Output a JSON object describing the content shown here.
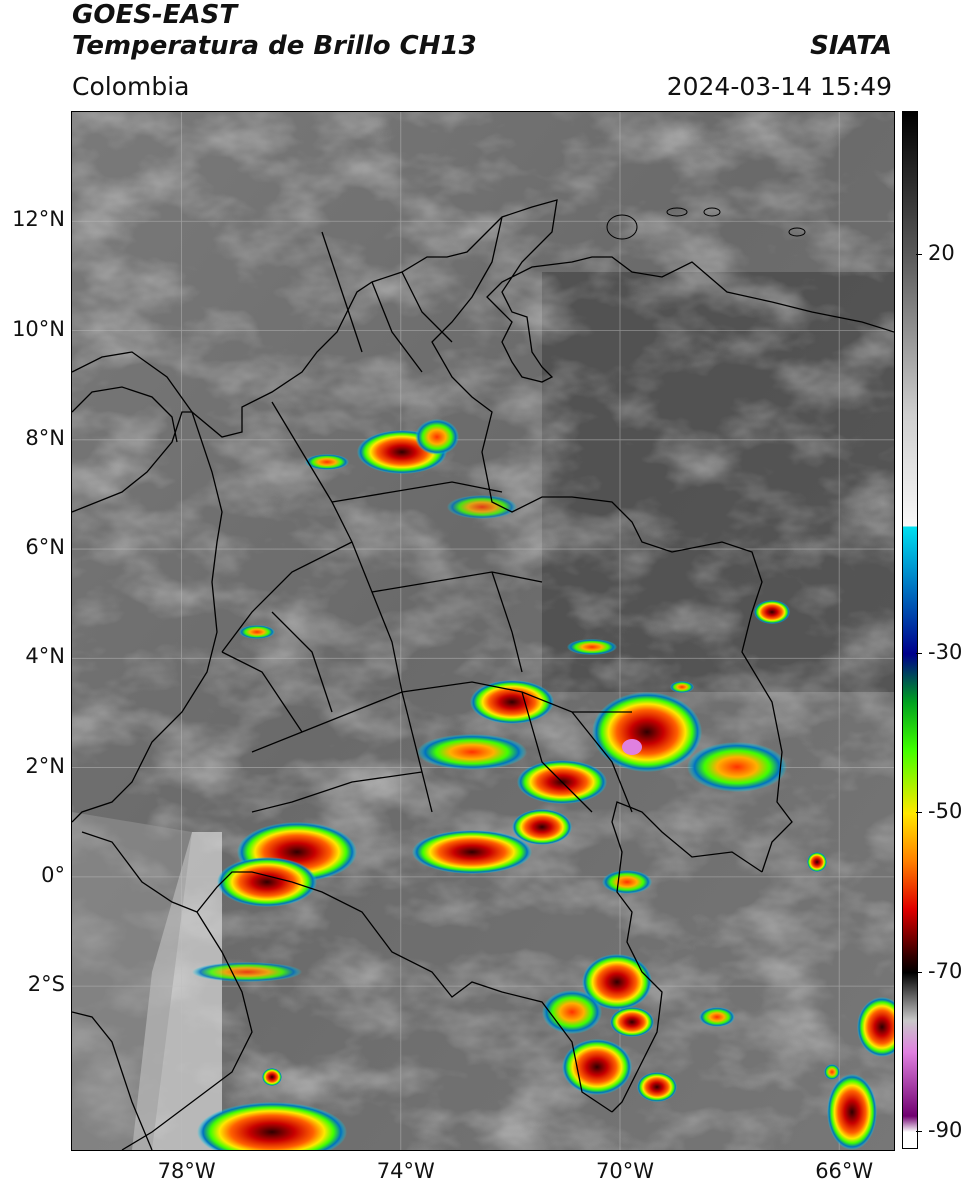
{
  "header": {
    "satellite": "GOES-EAST",
    "product": "Temperatura de Brillo CH13",
    "region": "Colombia",
    "agency": "SIATA",
    "datetime": "2024-03-14 15:49"
  },
  "axes": {
    "lat_ticks": [
      {
        "label": "12°N",
        "value": 12
      },
      {
        "label": "10°N",
        "value": 10
      },
      {
        "label": "8°N",
        "value": 8
      },
      {
        "label": "6°N",
        "value": 6
      },
      {
        "label": "4°N",
        "value": 4
      },
      {
        "label": "2°N",
        "value": 2
      },
      {
        "label": "0°",
        "value": 0
      },
      {
        "label": "2°S",
        "value": -2
      }
    ],
    "lon_ticks": [
      {
        "label": "78°W",
        "value": -78
      },
      {
        "label": "74°W",
        "value": -74
      },
      {
        "label": "70°W",
        "value": -70
      },
      {
        "label": "66°W",
        "value": -66
      }
    ],
    "lon_range": [
      -80.0,
      -65.0
    ],
    "lat_range": [
      -5.0,
      14.0
    ]
  },
  "colorbar": {
    "range": [
      -92,
      38
    ],
    "ticks": [
      {
        "label": "20",
        "value": 20
      },
      {
        "label": "-30",
        "value": -30
      },
      {
        "label": "-50",
        "value": -50
      },
      {
        "label": "-70",
        "value": -70
      },
      {
        "label": "-90",
        "value": -90
      }
    ],
    "stops": [
      {
        "value": 38,
        "color": "#000000"
      },
      {
        "value": 20,
        "color": "#5a5a5a"
      },
      {
        "value": 0,
        "color": "#cfcfcf"
      },
      {
        "value": -14,
        "color": "#f8f8f8"
      },
      {
        "value": -14.01,
        "color": "#00e0f0"
      },
      {
        "value": -22,
        "color": "#0070c0"
      },
      {
        "value": -30,
        "color": "#00008c"
      },
      {
        "value": -36,
        "color": "#00a020"
      },
      {
        "value": -42,
        "color": "#40ff00"
      },
      {
        "value": -50,
        "color": "#ffe800"
      },
      {
        "value": -56,
        "color": "#ff8000"
      },
      {
        "value": -62,
        "color": "#e00000"
      },
      {
        "value": -68,
        "color": "#300000"
      },
      {
        "value": -70,
        "color": "#000000"
      },
      {
        "value": -76,
        "color": "#c8c8c8"
      },
      {
        "value": -80,
        "color": "#e080e0"
      },
      {
        "value": -88,
        "color": "#700070"
      },
      {
        "value": -90,
        "color": "#ffffff"
      }
    ]
  }
}
